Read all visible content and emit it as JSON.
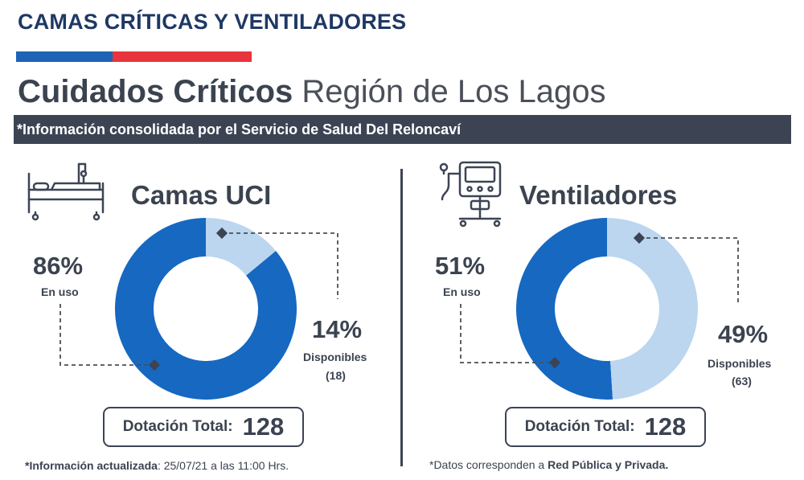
{
  "header": {
    "page_title": "CAMAS CRÍTICAS Y VENTILADORES",
    "heading_bold": "Cuidados Críticos",
    "heading_light": "Región de Los Lagos",
    "banner": "*Información consolidada por el Servicio de Salud Del Reloncaví"
  },
  "colors": {
    "in_use": "#1668c1",
    "available": "#bcd6ef",
    "dark": "#3c4454"
  },
  "chart_data": [
    {
      "type": "pie",
      "title": "Camas UCI",
      "icon": "hospital-bed-icon",
      "slices": [
        {
          "label": "En uso",
          "value": 86,
          "display": "86%"
        },
        {
          "label": "Disponibles",
          "value": 14,
          "display": "14%",
          "count": "(18)"
        }
      ],
      "total_label": "Dotación Total:",
      "total_value": "128"
    },
    {
      "type": "pie",
      "title": "Ventiladores",
      "icon": "ventilator-icon",
      "slices": [
        {
          "label": "En uso",
          "value": 51,
          "display": "51%"
        },
        {
          "label": "Disponibles",
          "value": 49,
          "display": "49%",
          "count": "(63)"
        }
      ],
      "total_label": "Dotación Total:",
      "total_value": "128"
    }
  ],
  "footer": {
    "left_bold": "*Información actualizada",
    "left_rest": ": 25/07/21 a las 11:00 Hrs.",
    "right_start": "*Datos corresponden a ",
    "right_bold": "Red Pública y Privada."
  }
}
